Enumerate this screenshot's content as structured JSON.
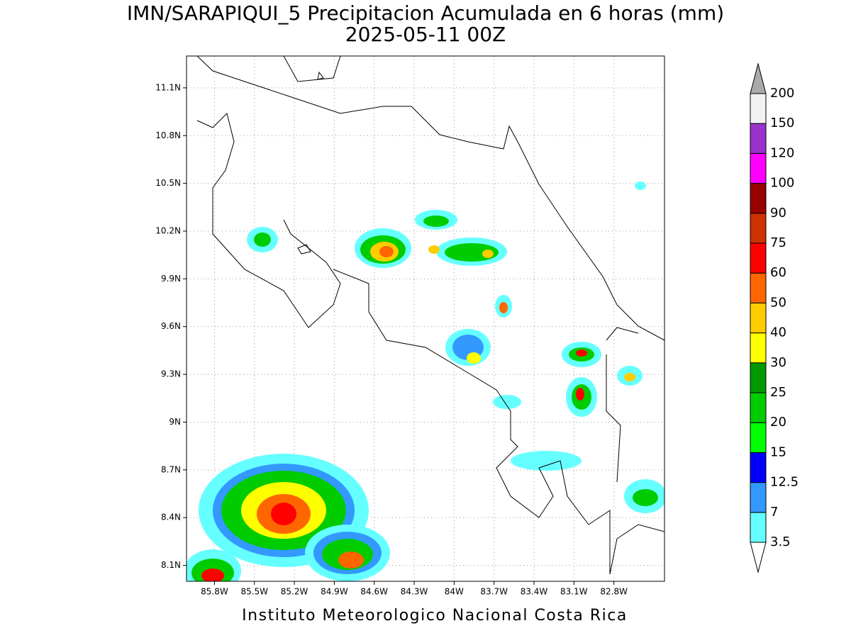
{
  "title": "IMN/SARAPIQUI_5 Precipitacion Acumulada en 6 horas (mm)",
  "subtitle": "2025-05-11 00Z",
  "footer": "Instituto Meteorologico Nacional Costa Rica",
  "map": {
    "xlim": [
      -86.01,
      -82.42
    ],
    "ylim": [
      8.0,
      11.3
    ],
    "xticks": [
      {
        "value": -85.8,
        "label": "85.8W"
      },
      {
        "value": -85.5,
        "label": "85.5W"
      },
      {
        "value": -85.2,
        "label": "85.2W"
      },
      {
        "value": -84.9,
        "label": "84.9W"
      },
      {
        "value": -84.6,
        "label": "84.6W"
      },
      {
        "value": -84.3,
        "label": "84.3W"
      },
      {
        "value": -84.0,
        "label": "84W"
      },
      {
        "value": -83.7,
        "label": "83.7W"
      },
      {
        "value": -83.4,
        "label": "83.4W"
      },
      {
        "value": -83.1,
        "label": "83.1W"
      },
      {
        "value": -82.8,
        "label": "82.8W"
      }
    ],
    "yticks": [
      {
        "value": 8.1,
        "label": "8.1N"
      },
      {
        "value": 8.4,
        "label": "8.4N"
      },
      {
        "value": 8.7,
        "label": "8.7N"
      },
      {
        "value": 9.0,
        "label": "9N"
      },
      {
        "value": 9.3,
        "label": "9.3N"
      },
      {
        "value": 9.6,
        "label": "9.6N"
      },
      {
        "value": 9.9,
        "label": "9.9N"
      },
      {
        "value": 10.2,
        "label": "10.2N"
      },
      {
        "value": 10.5,
        "label": "10.5N"
      },
      {
        "value": 10.8,
        "label": "10.8N"
      },
      {
        "value": 11.1,
        "label": "11.1N"
      }
    ],
    "grid": true
  },
  "colorbar": {
    "levels": [
      3.5,
      7,
      12.5,
      15,
      20,
      25,
      30,
      40,
      50,
      60,
      75,
      90,
      100,
      120,
      150,
      200
    ],
    "colors": [
      "#66ffff",
      "#3399ff",
      "#0000ff",
      "#00ff00",
      "#00cc00",
      "#009900",
      "#ffff00",
      "#ffcc00",
      "#ff6600",
      "#ff0000",
      "#cc3300",
      "#990000",
      "#ff00ff",
      "#9933cc",
      "#f2f2f2"
    ],
    "over_color": "#aaaaaa",
    "under_color": "#ffffff"
  }
}
